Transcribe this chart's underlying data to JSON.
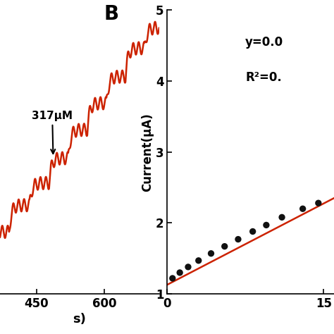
{
  "panel_b": {
    "label": "B",
    "scatter_x": [
      0.5,
      1.2,
      2.0,
      3.0,
      4.2,
      5.5,
      6.8,
      8.2,
      9.5,
      11.0,
      13.0,
      14.5
    ],
    "scatter_y": [
      1.22,
      1.3,
      1.38,
      1.47,
      1.57,
      1.67,
      1.77,
      1.88,
      1.97,
      2.08,
      2.2,
      2.28
    ],
    "line_x": [
      0,
      16
    ],
    "line_y": [
      1.13,
      2.35
    ],
    "scatter_color": "#111111",
    "line_color": "#cc2200",
    "ylabel": "Current(μA)",
    "ylim": [
      1.0,
      5.0
    ],
    "xlim": [
      0,
      16
    ],
    "yticks": [
      1,
      2,
      3,
      4,
      5
    ],
    "xticks": [
      0,
      15
    ],
    "equation_text": "y=0.0",
    "r2_text": "R²=0.",
    "eq_x": 7.5,
    "eq_y": 4.5,
    "scatter_size": 45,
    "line_width": 1.8
  },
  "panel_a": {
    "annotation_text": "317μM",
    "line_color": "#cc2200",
    "line_width": 2.0
  },
  "background_color": "#ffffff",
  "fig_width": 4.74,
  "fig_height": 4.74,
  "dpi": 100
}
